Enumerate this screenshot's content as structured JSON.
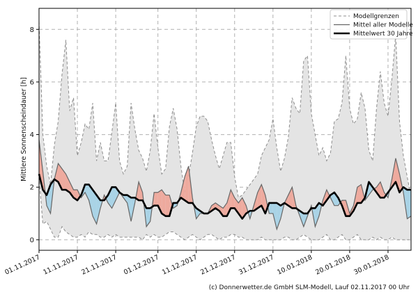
{
  "chart_data": {
    "type": "line",
    "ylabel": "Mittlere Sonnenscheindauer [h]",
    "ylim": [
      -0.4,
      8.8
    ],
    "yticks": [
      0,
      2,
      4,
      6,
      8
    ],
    "ytick_labels": [
      "0",
      "2",
      "4",
      "6",
      "8"
    ],
    "xlim": [
      0,
      97
    ],
    "xticks": [
      0,
      10,
      20,
      31,
      41,
      51,
      61,
      71,
      81,
      91
    ],
    "xtick_labels": [
      "01.11.2017",
      "11.11.2017",
      "21.11.2017",
      "01.12.2017",
      "11.12.2017",
      "21.12.2017",
      "31.12.2017",
      "10.01.2018",
      "20.01.2018",
      "30.01.2018"
    ],
    "grid": true,
    "legend_position": "top-right",
    "credit": "(c) Donnerwetter.de GmbH SLM-Modell, Lauf 02.11.2017 00 Uhr",
    "series": [
      {
        "name": "Modellgrenzen",
        "style": "dashed-band",
        "color": "#8c8c8c",
        "upper": [
          8.3,
          4.0,
          2.8,
          2.1,
          3.6,
          4.5,
          6.3,
          7.6,
          4.9,
          5.4,
          3.2,
          3.7,
          4.4,
          4.2,
          5.2,
          3.0,
          3.7,
          3.0,
          3.0,
          4.1,
          5.2,
          3.0,
          2.5,
          2.8,
          5.2,
          4.2,
          3.4,
          3.1,
          2.6,
          3.4,
          4.8,
          3.5,
          2.5,
          2.7,
          4.3,
          5.0,
          4.2,
          2.8,
          1.8,
          2.4,
          3.3,
          4.3,
          4.7,
          4.7,
          4.5,
          3.8,
          3.2,
          2.7,
          3.2,
          3.7,
          3.7,
          2.4,
          1.6,
          1.7,
          1.9,
          2.1,
          2.3,
          2.5,
          3.2,
          3.5,
          3.8,
          4.6,
          3.5,
          2.6,
          3.1,
          3.9,
          5.4,
          5.0,
          4.8,
          6.8,
          7.0,
          4.8,
          4.0,
          3.2,
          3.5,
          3.0,
          3.3,
          4.5,
          4.6,
          5.2,
          7.0,
          5.0,
          4.4,
          4.6,
          5.6,
          5.0,
          3.4,
          3.0,
          5.0,
          6.4,
          5.2,
          4.7,
          6.1,
          7.8,
          4.5,
          3.2,
          2.4,
          1.6
        ],
        "lower": [
          2.4,
          0.6,
          0.7,
          0.4,
          0.1,
          0.1,
          0.5,
          0.3,
          0.2,
          0.1,
          0.1,
          0.2,
          0.1,
          0.3,
          0.2,
          0.2,
          0.1,
          0.1,
          0.2,
          0.1,
          0.2,
          0.1,
          0.1,
          0.1,
          0.1,
          0.1,
          0.1,
          0.0,
          0.2,
          0.1,
          0.2,
          0.1,
          0.1,
          0.2,
          0.3,
          0.3,
          0.2,
          0.1,
          0.0,
          0.1,
          0.2,
          0.1,
          0.0,
          0.1,
          0.2,
          0.2,
          0.1,
          0.0,
          0.1,
          0.1,
          0.2,
          0.2,
          0.1,
          0.1,
          0.0,
          0.0,
          0.0,
          0.0,
          0.1,
          0.0,
          0.0,
          0.0,
          0.0,
          0.0,
          0.1,
          0.1,
          0.0,
          0.0,
          0.1,
          0.2,
          0.1,
          0.0,
          0.0,
          0.0,
          0.1,
          0.2,
          0.0,
          0.0,
          0.1,
          0.2,
          0.0,
          0.0,
          0.1,
          0.2,
          0.0,
          0.0,
          0.0,
          0.1,
          0.0,
          0.1,
          0.0,
          0.0,
          0.1,
          0.0,
          0.0,
          0.0,
          0.0,
          0.0
        ]
      },
      {
        "name": "Mittel aller Modelle",
        "style": "thin-line",
        "color": "#666666",
        "values": [
          3.8,
          2.6,
          1.3,
          1.0,
          2.3,
          2.9,
          2.7,
          2.5,
          2.2,
          1.9,
          1.9,
          1.6,
          1.8,
          1.5,
          0.9,
          0.6,
          1.2,
          1.7,
          1.4,
          1.2,
          1.5,
          1.8,
          1.6,
          1.4,
          0.7,
          1.4,
          2.2,
          1.8,
          0.5,
          0.7,
          1.8,
          1.8,
          1.9,
          1.7,
          1.7,
          1.2,
          1.3,
          1.8,
          2.4,
          2.8,
          1.6,
          0.8,
          1.0,
          1.0,
          1.0,
          1.3,
          1.4,
          1.3,
          1.2,
          1.4,
          1.9,
          1.6,
          1.4,
          1.6,
          1.3,
          0.8,
          1.3,
          1.8,
          2.1,
          1.7,
          1.0,
          1.0,
          0.4,
          0.8,
          1.4,
          1.7,
          2.0,
          1.3,
          0.9,
          0.5,
          0.9,
          1.3,
          0.5,
          0.9,
          1.5,
          1.9,
          1.6,
          1.3,
          1.3,
          1.5,
          1.5,
          1.0,
          1.3,
          2.0,
          2.1,
          1.5,
          1.7,
          1.9,
          2.0,
          2.2,
          1.8,
          1.6,
          2.3,
          3.1,
          2.5,
          1.8,
          0.8,
          0.9
        ]
      },
      {
        "name": "Mittelwert 30 Jahre",
        "style": "thick-line",
        "color": "#000000",
        "values": [
          2.5,
          1.9,
          1.7,
          2.1,
          2.3,
          2.2,
          1.9,
          1.9,
          1.8,
          1.6,
          1.5,
          1.7,
          2.1,
          2.1,
          1.9,
          1.7,
          1.5,
          1.5,
          1.7,
          2.0,
          2.0,
          1.8,
          1.7,
          1.7,
          1.6,
          1.6,
          1.5,
          1.5,
          1.2,
          1.2,
          1.3,
          1.3,
          1.0,
          0.9,
          0.9,
          1.4,
          1.4,
          1.6,
          1.5,
          1.4,
          1.4,
          1.2,
          1.1,
          1.0,
          1.0,
          1.1,
          1.2,
          1.1,
          0.9,
          0.9,
          1.2,
          1.2,
          1.0,
          0.8,
          1.0,
          1.1,
          1.1,
          1.2,
          1.3,
          1.0,
          1.4,
          1.4,
          1.4,
          1.3,
          1.4,
          1.3,
          1.2,
          1.2,
          1.1,
          1.0,
          1.0,
          1.2,
          1.2,
          1.4,
          1.3,
          1.5,
          1.7,
          1.8,
          1.6,
          1.3,
          0.9,
          0.9,
          1.1,
          1.4,
          1.4,
          1.6,
          2.2,
          2.0,
          1.8,
          1.6,
          1.6,
          1.8,
          2.0,
          2.2,
          1.8,
          2.0,
          1.9,
          1.9
        ]
      }
    ]
  }
}
